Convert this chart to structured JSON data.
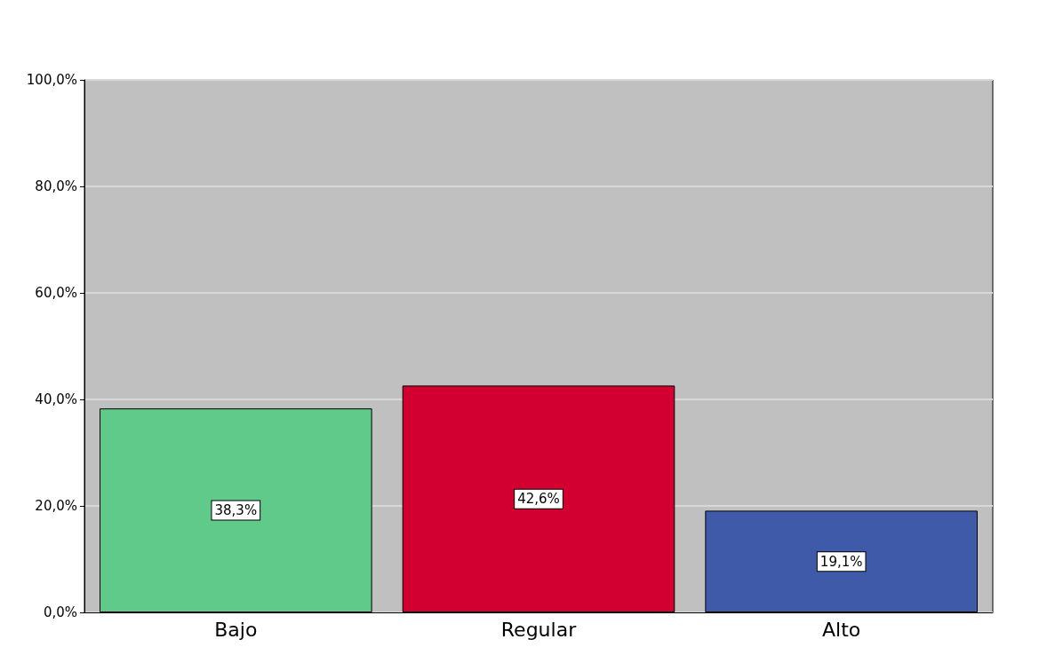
{
  "chart_data": {
    "type": "bar",
    "categories": [
      "Bajo",
      "Regular",
      "Alto"
    ],
    "values": [
      38.3,
      42.6,
      19.1
    ],
    "colors": [
      "#5fca8a",
      "#d10030",
      "#3f5aa9"
    ],
    "value_labels": [
      "38,3%",
      "42,6%",
      "19,1%"
    ],
    "ylim": [
      0,
      100
    ],
    "yticks": [
      {
        "value": 0,
        "label": "0,0%"
      },
      {
        "value": 20,
        "label": "20,0%"
      },
      {
        "value": 40,
        "label": "40,0%"
      },
      {
        "value": 60,
        "label": "60,0%"
      },
      {
        "value": 80,
        "label": "80,0%"
      },
      {
        "value": 100,
        "label": "100,0%"
      }
    ],
    "grid": true
  }
}
